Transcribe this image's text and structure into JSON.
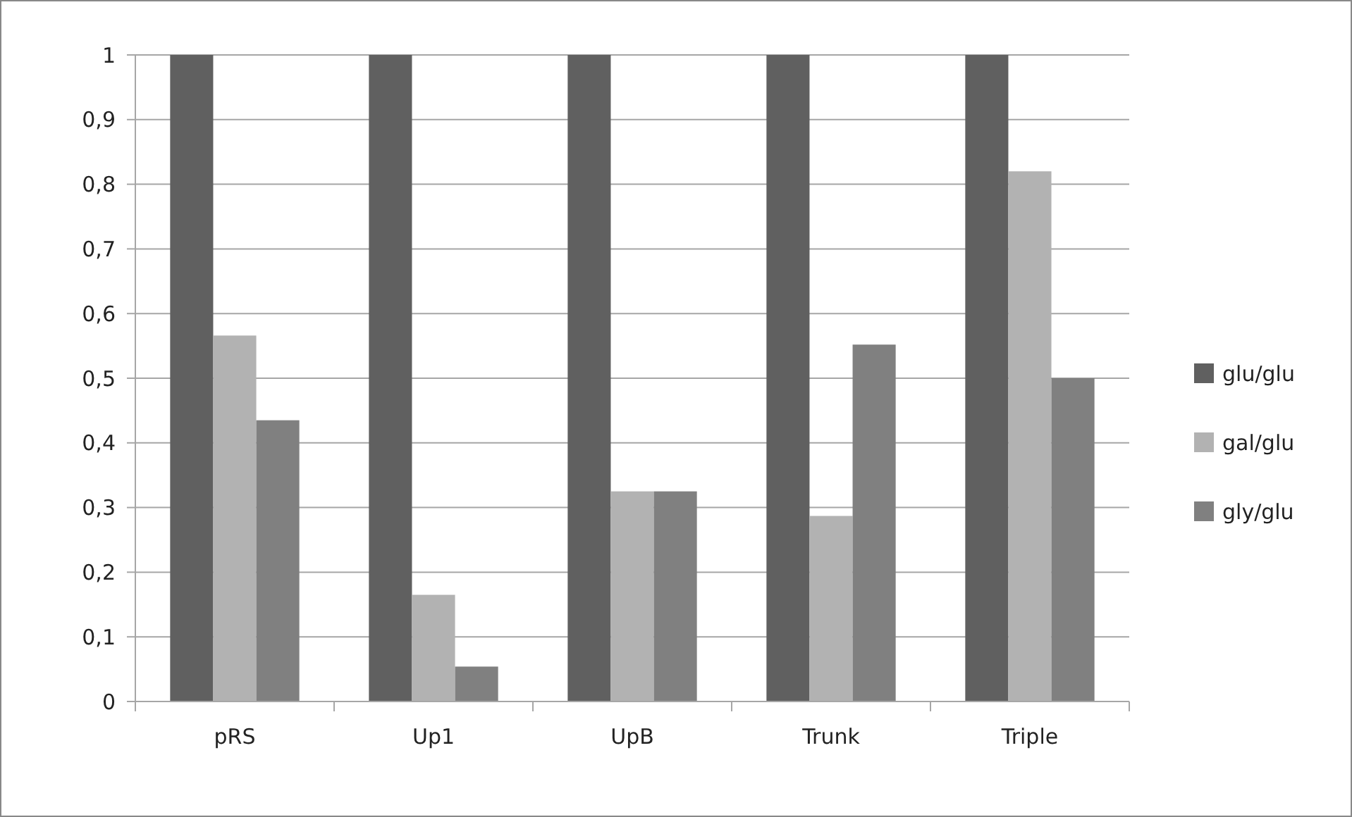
{
  "chart_data": {
    "type": "bar",
    "categories": [
      "pRS",
      "Up1",
      "UpB",
      "Trunk",
      "Triple"
    ],
    "series": [
      {
        "name": "glu/glu",
        "color": "#606060",
        "values": [
          1,
          1,
          1,
          1,
          1
        ]
      },
      {
        "name": "gal/glu",
        "color": "#b2b2b2",
        "values": [
          0.566,
          0.165,
          0.325,
          0.287,
          0.82
        ]
      },
      {
        "name": "gly/glu",
        "color": "#808080",
        "values": [
          0.435,
          0.054,
          0.325,
          0.552,
          0.5
        ]
      }
    ],
    "ylim": [
      0,
      1
    ],
    "yticks": [
      0,
      {
        "value": 0.1,
        "label": "0,1"
      },
      {
        "value": 0.2,
        "label": "0,2"
      },
      {
        "value": 0.3,
        "label": "0,3"
      },
      {
        "value": 0.4,
        "label": "0,4"
      },
      {
        "value": 0.5,
        "label": "0,5"
      },
      {
        "value": 0.6,
        "label": "0,6"
      },
      {
        "value": 0.7,
        "label": "0,7"
      },
      {
        "value": 0.8,
        "label": "0,8"
      },
      {
        "value": 0.9,
        "label": "0,9"
      },
      1
    ],
    "grid": "y",
    "legend": "right"
  }
}
